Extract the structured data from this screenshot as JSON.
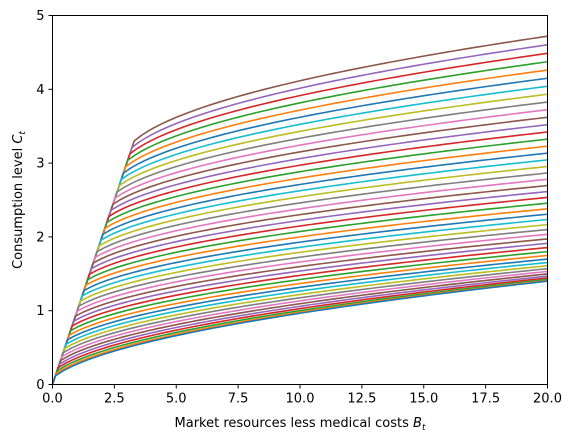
{
  "chart_data": {
    "type": "line",
    "title": "",
    "xlabel_text": "Market resources less medical costs ",
    "xlabel_sym": "B",
    "xlabel_sub": "t",
    "ylabel_text": "Consumption level ",
    "ylabel_sym": "C",
    "ylabel_sub": "t",
    "xlim": [
      0,
      20
    ],
    "ylim": [
      0,
      5
    ],
    "xticks": [
      0,
      2.5,
      5,
      7.5,
      10,
      12.5,
      15,
      17.5,
      20
    ],
    "xtick_labels": [
      "0.0",
      "2.5",
      "5.0",
      "7.5",
      "10.0",
      "12.5",
      "15.0",
      "17.5",
      "20.0"
    ],
    "yticks": [
      0,
      1,
      2,
      3,
      4,
      5
    ],
    "ytick_labels": [
      "0",
      "1",
      "2",
      "3",
      "4",
      "5"
    ],
    "grid": false,
    "legend": "none",
    "palette": [
      "#1f77b4",
      "#ff7f0e",
      "#2ca02c",
      "#d62728",
      "#9467bd",
      "#8c564b",
      "#e377c2",
      "#7f7f7f",
      "#bcbd22",
      "#17becf"
    ],
    "series_summary": {
      "count": 46,
      "value_at_x20": {
        "top": 4.72,
        "bottom": 1.4
      },
      "constraint_kink": {
        "top": [
          3.3,
          3.3
        ],
        "bottom": [
          0.12,
          0.12
        ]
      }
    }
  }
}
